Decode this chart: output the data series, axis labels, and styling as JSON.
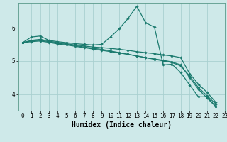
{
  "xlabel": "Humidex (Indice chaleur)",
  "ylabel": "",
  "background_color": "#cee9e9",
  "line_color": "#1a7a6e",
  "grid_color": "#aad0d0",
  "xlim": [
    -0.5,
    23
  ],
  "ylim": [
    3.5,
    6.75
  ],
  "yticks": [
    4,
    5,
    6
  ],
  "xticks": [
    0,
    1,
    2,
    3,
    4,
    5,
    6,
    7,
    8,
    9,
    10,
    11,
    12,
    13,
    14,
    15,
    16,
    17,
    18,
    19,
    20,
    21,
    22,
    23
  ],
  "series": [
    [
      5.55,
      5.72,
      5.75,
      5.62,
      5.58,
      5.55,
      5.52,
      5.5,
      5.48,
      5.5,
      5.72,
      5.97,
      6.28,
      6.65,
      6.15,
      6.02,
      4.88,
      4.9,
      4.65,
      4.28,
      3.92,
      3.92,
      3.62
    ],
    [
      5.55,
      5.62,
      5.65,
      5.6,
      5.55,
      5.52,
      5.48,
      5.45,
      5.42,
      5.4,
      5.38,
      5.35,
      5.32,
      5.28,
      5.25,
      5.22,
      5.18,
      5.15,
      5.1,
      4.62,
      4.3,
      4.05,
      3.75
    ],
    [
      5.55,
      5.6,
      5.62,
      5.58,
      5.53,
      5.5,
      5.46,
      5.42,
      5.38,
      5.35,
      5.3,
      5.25,
      5.2,
      5.15,
      5.1,
      5.05,
      5.0,
      4.95,
      4.85,
      4.55,
      4.2,
      3.95,
      3.7
    ],
    [
      5.55,
      5.58,
      5.6,
      5.56,
      5.51,
      5.48,
      5.44,
      5.4,
      5.36,
      5.32,
      5.28,
      5.24,
      5.2,
      5.15,
      5.1,
      5.06,
      5.02,
      4.97,
      4.88,
      4.5,
      4.15,
      3.88,
      3.62
    ]
  ],
  "marker": "D",
  "markersize": 1.8,
  "linewidth": 0.9,
  "font_family": "monospace",
  "xlabel_fontsize": 7,
  "tick_fontsize": 5.5
}
